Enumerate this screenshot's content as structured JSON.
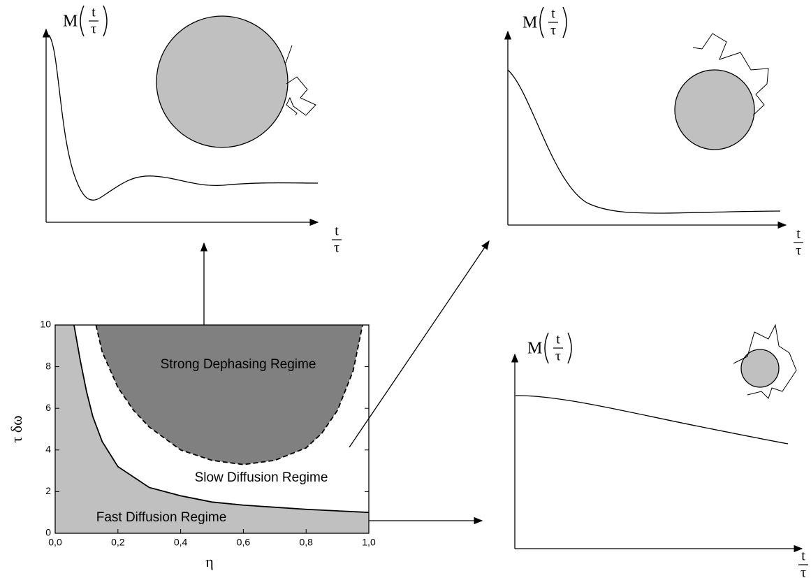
{
  "chart_data": {
    "type": "area",
    "x_label": "η",
    "y_label": "τ δω",
    "xlim": [
      0,
      1
    ],
    "ylim": [
      0,
      10
    ],
    "xticks": [
      {
        "value": 0,
        "label": "0,0"
      },
      {
        "value": 0.2,
        "label": "0,2"
      },
      {
        "value": 0.4,
        "label": "0,4"
      },
      {
        "value": 0.6,
        "label": "0,6"
      },
      {
        "value": 0.8,
        "label": "0,8"
      },
      {
        "value": 1,
        "label": "1,0"
      }
    ],
    "yticks": [
      0,
      2,
      4,
      6,
      8,
      10
    ],
    "series": [
      {
        "name": "Fast Diffusion Regime",
        "color": "#c0c0c0",
        "line": "solid",
        "x": [
          0.06,
          0.08,
          0.1,
          0.12,
          0.15,
          0.2,
          0.3,
          0.4,
          0.5,
          0.6,
          0.8,
          1.0
        ],
        "values": [
          10,
          8.3,
          6.8,
          5.6,
          4.4,
          3.2,
          2.2,
          1.8,
          1.5,
          1.35,
          1.15,
          1.0
        ]
      },
      {
        "name": "Strong Dephasing Regime",
        "color": "#808080",
        "line": "dashed",
        "x": [
          0.13,
          0.15,
          0.2,
          0.25,
          0.3,
          0.4,
          0.5,
          0.6,
          0.7,
          0.8,
          0.85,
          0.9,
          0.95,
          0.98
        ],
        "values": [
          10,
          8.7,
          7.0,
          5.9,
          5.1,
          4.0,
          3.5,
          3.3,
          3.5,
          4.1,
          4.8,
          5.9,
          7.8,
          10
        ]
      }
    ],
    "region_label": "Slow Diffusion Regime"
  },
  "panels": [
    {
      "y_label": {
        "func": "M",
        "num": "t",
        "den": "τ"
      },
      "x_label": {
        "num": "t",
        "den": "τ"
      }
    },
    {
      "y_label": {
        "func": "M",
        "num": "t",
        "den": "τ"
      },
      "x_label": {
        "num": "t",
        "den": "τ"
      }
    },
    {
      "y_label": {
        "func": "M",
        "num": "t",
        "den": "τ"
      },
      "x_label": {
        "num": "t",
        "den": "τ"
      }
    }
  ]
}
